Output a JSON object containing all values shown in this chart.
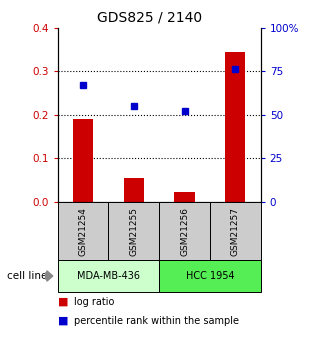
{
  "title": "GDS825 / 2140",
  "samples": [
    "GSM21254",
    "GSM21255",
    "GSM21256",
    "GSM21257"
  ],
  "log_ratio": [
    0.19,
    0.055,
    0.022,
    0.345
  ],
  "percentile_rank_pct": [
    67,
    55,
    52,
    76
  ],
  "cell_lines": [
    {
      "label": "MDA-MB-436",
      "samples": [
        0,
        1
      ],
      "color": "#ccffcc"
    },
    {
      "label": "HCC 1954",
      "samples": [
        2,
        3
      ],
      "color": "#55ee55"
    }
  ],
  "bar_color": "#cc0000",
  "dot_color": "#0000cc",
  "left_ylim": [
    0,
    0.4
  ],
  "right_ylim": [
    0,
    100
  ],
  "left_yticks": [
    0,
    0.1,
    0.2,
    0.3,
    0.4
  ],
  "right_yticks": [
    0,
    25,
    50,
    75,
    100
  ],
  "right_yticklabels": [
    "0",
    "25",
    "50",
    "75",
    "100%"
  ],
  "left_ylabel_color": "#cc0000",
  "right_ylabel_color": "#0000cc",
  "sample_box_color": "#cccccc",
  "legend_red_label": "log ratio",
  "legend_blue_label": "percentile rank within the sample",
  "grid_lines": [
    0.1,
    0.2,
    0.3
  ]
}
